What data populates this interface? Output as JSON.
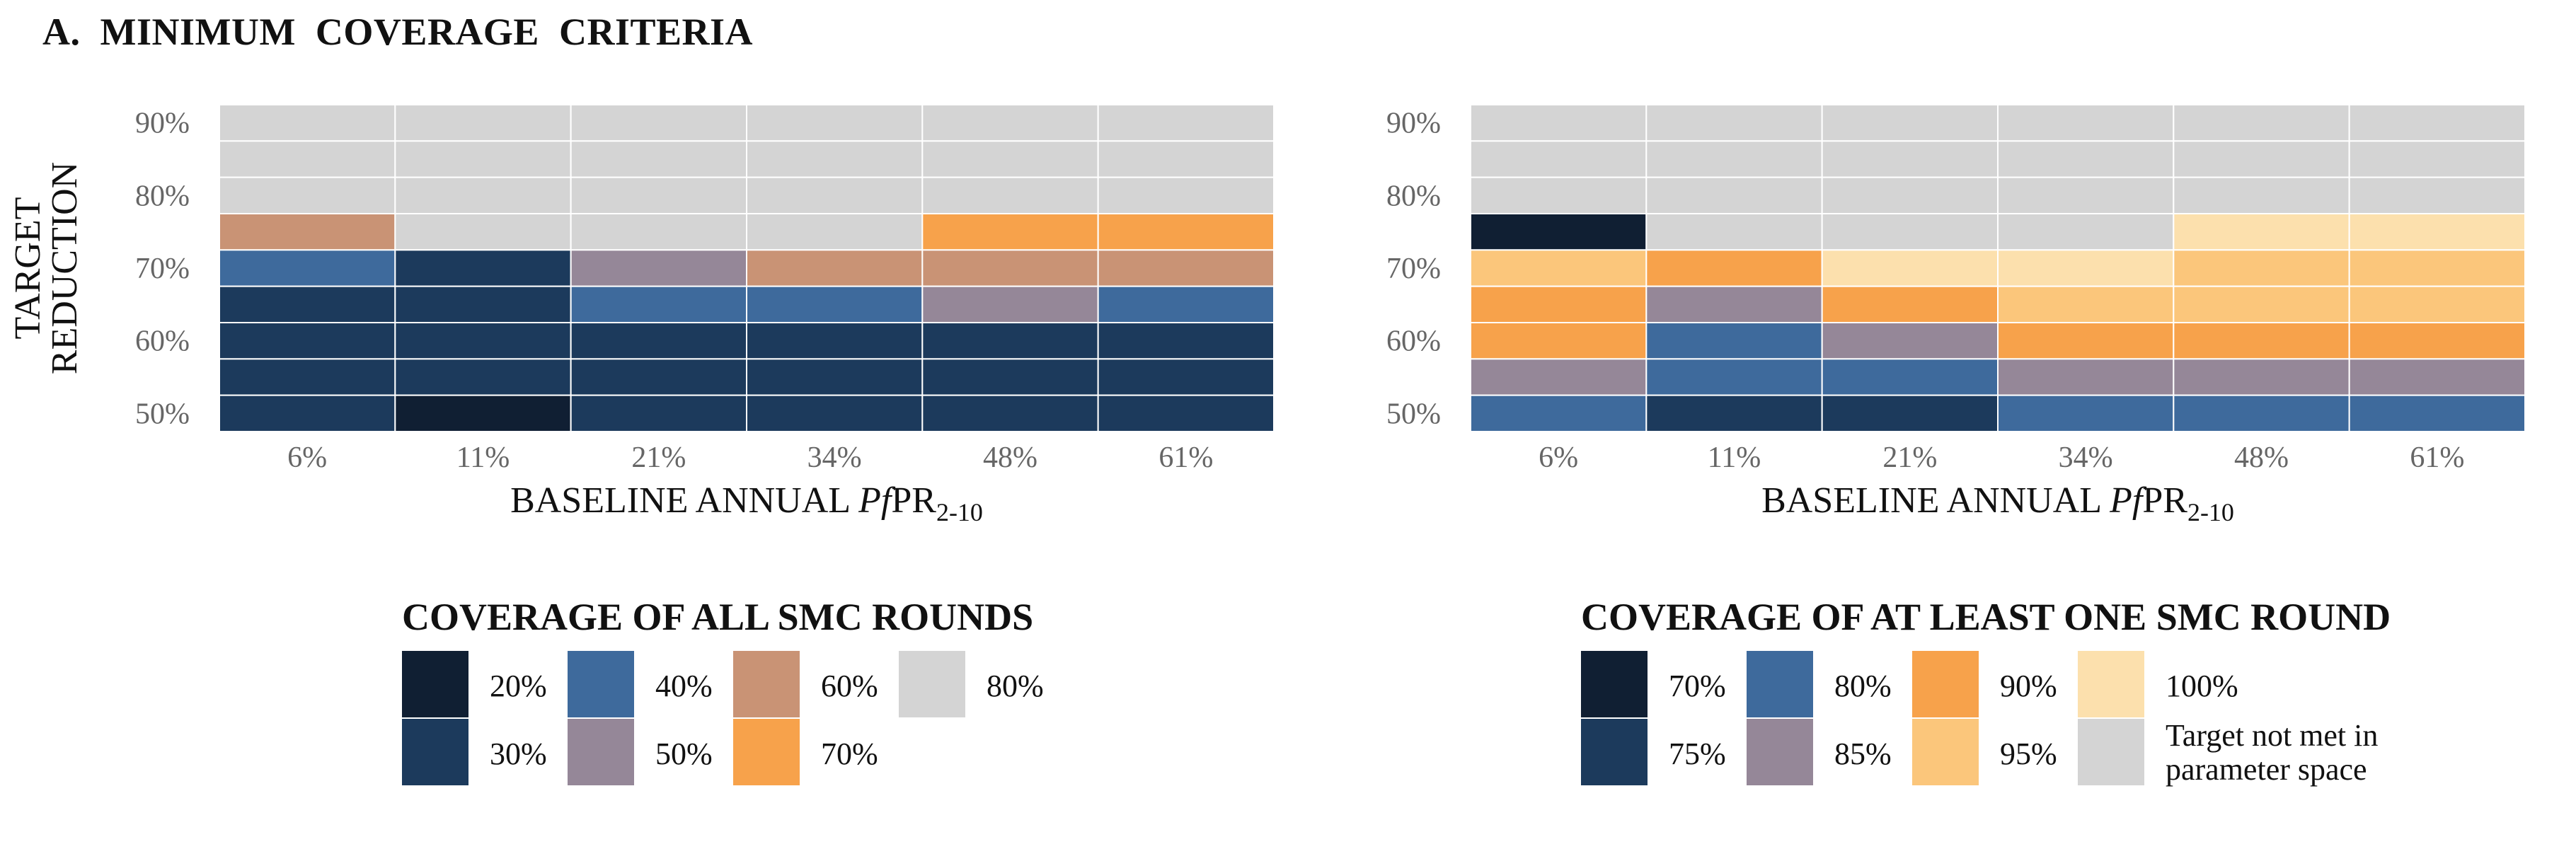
{
  "title": "A.  MINIMUM  COVERAGE  CRITERIA",
  "colors": {
    "c20": "#101f33",
    "c30": "#1c3a5c",
    "c40": "#3e6a9c",
    "c50": "#958798",
    "c60": "#c99375",
    "c70": "#f7a24b",
    "c80": "#d4d4d4",
    "o70": "#101f33",
    "o75": "#1c3a5c",
    "o80": "#3e6a9c",
    "o85": "#958798",
    "o90": "#f7a24b",
    "o95": "#fbc67b",
    "o100": "#fce0ad",
    "notmet": "#d4d4d4"
  },
  "chart_data": [
    {
      "type": "heatmap",
      "x": [
        "6%",
        "11%",
        "21%",
        "34%",
        "48%",
        "61%"
      ],
      "y_ticks": [
        "50%",
        "60%",
        "70%",
        "80%",
        "90%"
      ],
      "y_rows": [
        "90%",
        "85%",
        "80%",
        "75%",
        "70%",
        "65%",
        "60%",
        "55%",
        "50%"
      ],
      "ylabel": [
        "TARGET",
        "REDUCTION"
      ],
      "xlabel": {
        "pre": "BASELINE ANNUAL ",
        "italic": "Pf",
        "mid": "PR",
        "sub": "2-10"
      },
      "cells": [
        [
          "c80",
          "c80",
          "c80",
          "c80",
          "c80",
          "c80"
        ],
        [
          "c80",
          "c80",
          "c80",
          "c80",
          "c80",
          "c80"
        ],
        [
          "c80",
          "c80",
          "c80",
          "c80",
          "c80",
          "c80"
        ],
        [
          "c60",
          "c80",
          "c80",
          "c80",
          "c70",
          "c70"
        ],
        [
          "c40",
          "c30",
          "c50",
          "c60",
          "c60",
          "c60"
        ],
        [
          "c30",
          "c30",
          "c40",
          "c40",
          "c50",
          "c40"
        ],
        [
          "c30",
          "c30",
          "c30",
          "c30",
          "c30",
          "c30"
        ],
        [
          "c30",
          "c30",
          "c30",
          "c30",
          "c30",
          "c30"
        ],
        [
          "c30",
          "c20",
          "c30",
          "c30",
          "c30",
          "c30"
        ]
      ],
      "legend": {
        "title": "COVERAGE  OF  ALL  SMC  ROUNDS",
        "items": [
          {
            "key": "c20",
            "label": "20%"
          },
          {
            "key": "c30",
            "label": "30%"
          },
          {
            "key": "c40",
            "label": "40%"
          },
          {
            "key": "c50",
            "label": "50%"
          },
          {
            "key": "c60",
            "label": "60%"
          },
          {
            "key": "c70",
            "label": "70%"
          },
          {
            "key": "c80",
            "label": "80%"
          }
        ]
      }
    },
    {
      "type": "heatmap",
      "x": [
        "6%",
        "11%",
        "21%",
        "34%",
        "48%",
        "61%"
      ],
      "y_ticks": [
        "50%",
        "60%",
        "70%",
        "80%",
        "90%"
      ],
      "y_rows": [
        "90%",
        "85%",
        "80%",
        "75%",
        "70%",
        "65%",
        "60%",
        "55%",
        "50%"
      ],
      "xlabel": {
        "pre": "BASELINE ANNUAL ",
        "italic": "Pf",
        "mid": "PR",
        "sub": "2-10"
      },
      "cells": [
        [
          "notmet",
          "notmet",
          "notmet",
          "notmet",
          "notmet",
          "notmet"
        ],
        [
          "notmet",
          "notmet",
          "notmet",
          "notmet",
          "notmet",
          "notmet"
        ],
        [
          "notmet",
          "notmet",
          "notmet",
          "notmet",
          "notmet",
          "notmet"
        ],
        [
          "o70",
          "notmet",
          "notmet",
          "notmet",
          "o100",
          "o100"
        ],
        [
          "o95",
          "o90",
          "o100",
          "o100",
          "o95",
          "o95"
        ],
        [
          "o90",
          "o85",
          "o90",
          "o95",
          "o95",
          "o95"
        ],
        [
          "o90",
          "o80",
          "o85",
          "o90",
          "o90",
          "o90"
        ],
        [
          "o85",
          "o80",
          "o80",
          "o85",
          "o85",
          "o85"
        ],
        [
          "o80",
          "o75",
          "o75",
          "o80",
          "o80",
          "o80"
        ]
      ],
      "legend": {
        "title": "COVERAGE OF AT LEAST ONE SMC ROUND",
        "items": [
          {
            "key": "o70",
            "label": "70%"
          },
          {
            "key": "o75",
            "label": "75%"
          },
          {
            "key": "o80",
            "label": "80%"
          },
          {
            "key": "o85",
            "label": "85%"
          },
          {
            "key": "o90",
            "label": "90%"
          },
          {
            "key": "o95",
            "label": "95%"
          },
          {
            "key": "o100",
            "label": "100%"
          },
          {
            "key": "notmet",
            "label": [
              "Target not met in",
              "parameter space"
            ]
          }
        ]
      }
    }
  ]
}
